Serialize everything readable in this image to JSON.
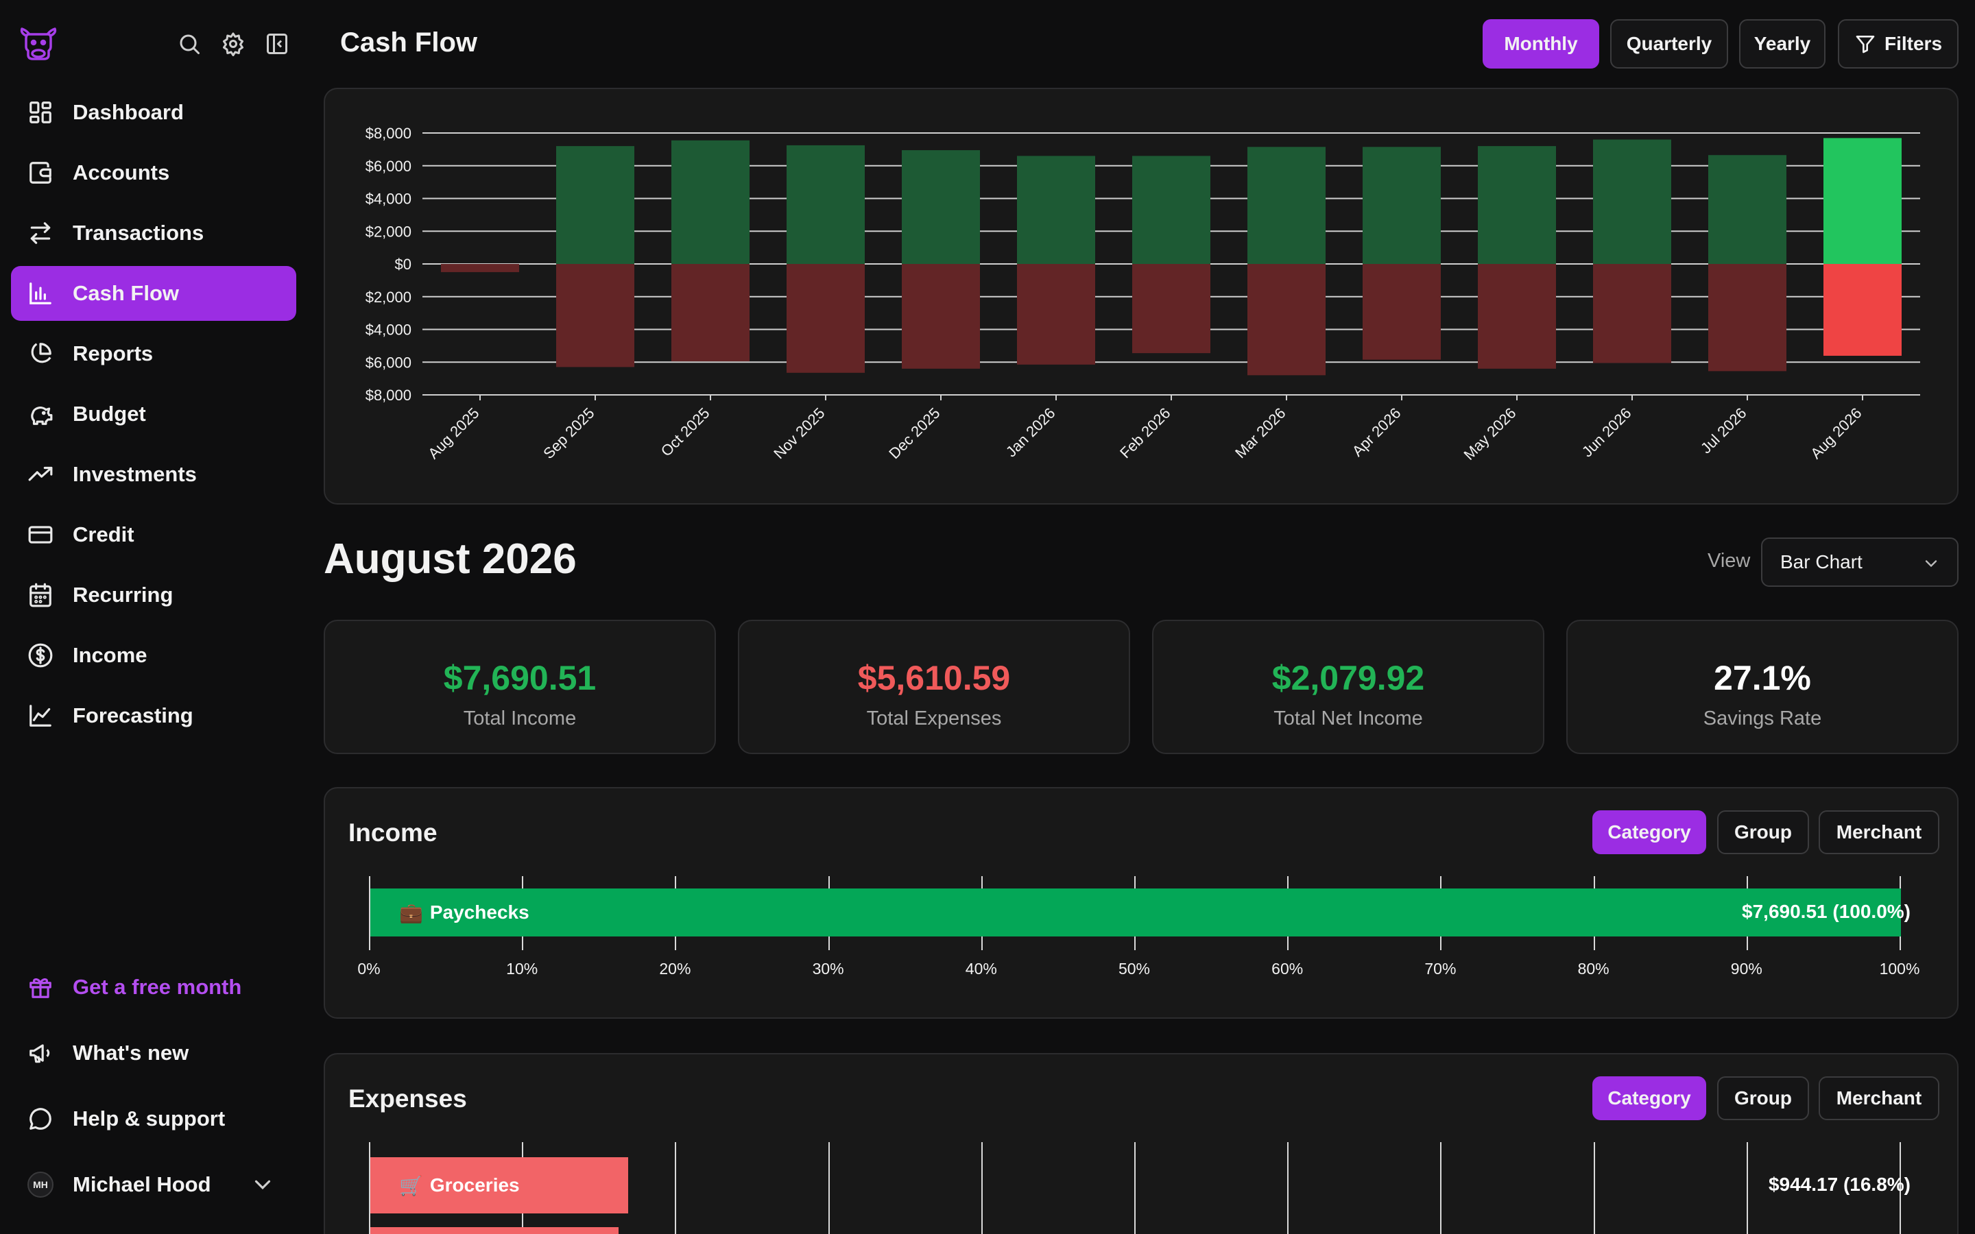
{
  "sidebar": {
    "items": [
      {
        "label": "Dashboard",
        "icon": "dashboard-icon"
      },
      {
        "label": "Accounts",
        "icon": "wallet-icon"
      },
      {
        "label": "Transactions",
        "icon": "arrows-icon"
      },
      {
        "label": "Cash Flow",
        "icon": "bar-chart-icon",
        "active": true
      },
      {
        "label": "Reports",
        "icon": "pie-chart-icon"
      },
      {
        "label": "Budget",
        "icon": "piggy-bank-icon"
      },
      {
        "label": "Investments",
        "icon": "trend-up-icon"
      },
      {
        "label": "Credit",
        "icon": "credit-card-icon"
      },
      {
        "label": "Recurring",
        "icon": "calendar-icon"
      },
      {
        "label": "Income",
        "icon": "dollar-circle-icon"
      },
      {
        "label": "Forecasting",
        "icon": "line-chart-icon"
      }
    ],
    "promo_label": "Get a free month",
    "whats_new_label": "What's new",
    "help_label": "Help & support",
    "user": {
      "initials": "MH",
      "name": "Michael Hood"
    }
  },
  "header": {
    "title": "Cash Flow",
    "periods": [
      "Monthly",
      "Quarterly",
      "Yearly"
    ],
    "active_period": "Monthly",
    "filters_label": "Filters"
  },
  "chart_data": {
    "type": "bar",
    "categories": [
      "Aug 2025",
      "Sep 2025",
      "Oct 2025",
      "Nov 2025",
      "Dec 2025",
      "Jan 2026",
      "Feb 2026",
      "Mar 2026",
      "Apr 2026",
      "May 2026",
      "Jun 2026",
      "Jul 2026",
      "Aug 2026"
    ],
    "series": [
      {
        "values": [
          0,
          7200,
          7550,
          7250,
          6950,
          6600,
          6600,
          7150,
          7150,
          7200,
          7600,
          6650,
          7690.51
        ],
        "color": "#1d5a34",
        "highlight_color": "#22c55e"
      },
      {
        "values": [
          -500,
          -6300,
          -5950,
          -6650,
          -6400,
          -6150,
          -5450,
          -6800,
          -5850,
          -6400,
          -6050,
          -6550,
          -5610.59
        ],
        "color": "#632526",
        "highlight_color": "#ef4444"
      }
    ],
    "highlight_index": 12,
    "ylim": [
      -8000,
      8000
    ],
    "yticks": [
      8000,
      6000,
      4000,
      2000,
      0,
      -2000,
      -4000,
      -6000,
      -8000
    ],
    "ytick_labels": [
      "$8,000",
      "$6,000",
      "$4,000",
      "$2,000",
      "$0",
      "$2,000",
      "$4,000",
      "$6,000",
      "$8,000"
    ],
    "grid": true
  },
  "summary": {
    "month_title": "August 2026",
    "view_label": "View",
    "view_value": "Bar Chart",
    "stats": [
      {
        "value": "$7,690.51",
        "label": "Total Income",
        "color": "#22b456"
      },
      {
        "value": "$5,610.59",
        "label": "Total Expenses",
        "color": "#f05a5a"
      },
      {
        "value": "$2,079.92",
        "label": "Total Net Income",
        "color": "#22b456"
      },
      {
        "value": "27.1%",
        "label": "Savings Rate",
        "color": "#ffffff"
      }
    ]
  },
  "income": {
    "title": "Income",
    "tabs": [
      "Category",
      "Group",
      "Merchant"
    ],
    "active_tab": "Category",
    "axis_labels": [
      "0%",
      "10%",
      "20%",
      "30%",
      "40%",
      "50%",
      "60%",
      "70%",
      "80%",
      "90%",
      "100%"
    ],
    "bars": [
      {
        "emoji": "💼",
        "name": "Paychecks",
        "value_label": "$7,690.51 (100.0%)",
        "fraction": 1.0,
        "color": "#04a757"
      }
    ]
  },
  "expenses": {
    "title": "Expenses",
    "tabs": [
      "Category",
      "Group",
      "Merchant"
    ],
    "active_tab": "Category",
    "bars": [
      {
        "emoji": "🛒",
        "name": "Groceries",
        "value_label": "$944.17 (16.8%)",
        "fraction": 0.168,
        "color": "#f26467"
      }
    ]
  }
}
